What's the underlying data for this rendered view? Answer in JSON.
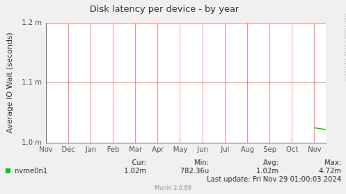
{
  "chart_data": {
    "type": "line",
    "title": "Disk latency per device - by year",
    "y_label": "Average IO Wait (seconds)",
    "categories": [
      "Nov",
      null,
      "Dec",
      null,
      "Jan",
      null,
      "Feb",
      null,
      "Mar",
      null,
      "Apr",
      null,
      "May",
      null,
      "Jun",
      null,
      "Jul",
      null,
      "Aug",
      null,
      "Sep",
      null,
      "Oct",
      null,
      "Nov",
      null
    ],
    "series": [
      {
        "name": "nvme0n1",
        "color": "#00cc00",
        "values": [
          null,
          null,
          null,
          null,
          null,
          null,
          null,
          null,
          null,
          null,
          null,
          null,
          null,
          null,
          null,
          null,
          null,
          null,
          null,
          null,
          null,
          null,
          null,
          null,
          0.001025,
          0.001022
        ]
      }
    ],
    "ylim": [
      0.001,
      0.0012
    ],
    "yticks": [
      {
        "value": 0.001,
        "label": "1.0 m"
      },
      {
        "value": 0.0011,
        "label": "1.1 m"
      },
      {
        "value": 0.0012,
        "label": "1.2 m"
      }
    ],
    "grid": true,
    "legend": "bottom",
    "summary": {
      "columns": [
        "Cur:",
        "Min:",
        "Avg:",
        "Max:"
      ],
      "values": [
        {
          "value": 0.00102,
          "label": "1.02m"
        },
        {
          "value": 0.00078236,
          "label": "782.36u"
        },
        {
          "value": 0.00102,
          "label": "1.02m"
        },
        {
          "value": 0.00472,
          "label": "4.72m"
        }
      ]
    },
    "footer": "Last update: Fri Nov 29 01:00:03 2024",
    "credit": "Munin 2.0.69",
    "watermark": "RRDTOOL / TOBI OETIKER"
  }
}
